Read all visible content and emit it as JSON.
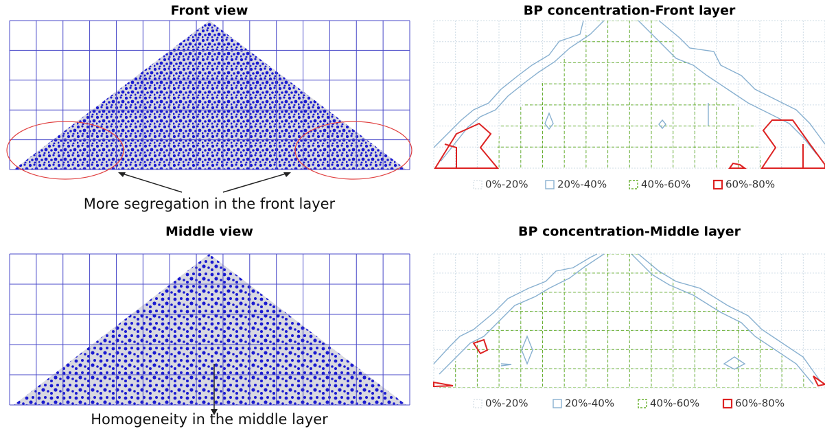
{
  "left": {
    "front": {
      "title": "Front view",
      "annotation": "More segregation in the front layer"
    },
    "middle": {
      "title": "Middle view",
      "annotation": "Homogeneity in the middle layer"
    }
  },
  "right": {
    "front": {
      "title": "BP concentration-Front layer",
      "legend": [
        "0%-20%",
        "20%-40%",
        "40%-60%",
        "60%-80%"
      ]
    },
    "middle": {
      "title": "BP concentration-Middle layer",
      "legend": [
        "0%-20%",
        "20%-40%",
        "40%-60%",
        "60%-80%"
      ]
    }
  }
}
